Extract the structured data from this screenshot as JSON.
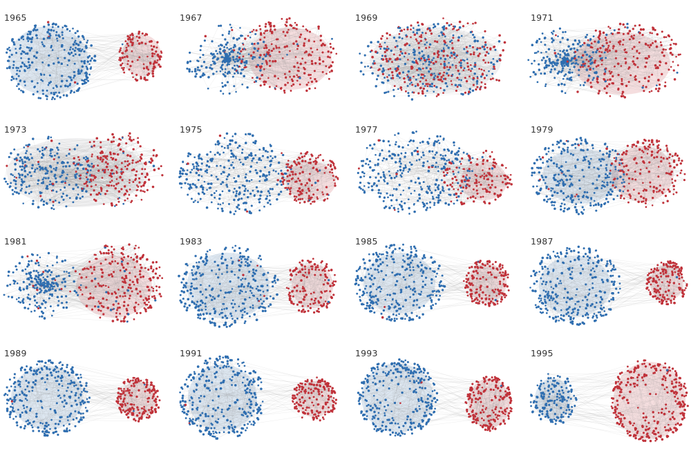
{
  "colors": {
    "party_a": "#2f6eb0",
    "party_b": "#c0323a",
    "edge": "#8a8a8a"
  },
  "panels": [
    {
      "year": "1965",
      "blue_nodes": 300,
      "red_nodes": 120,
      "separation": "high",
      "blue_cluster": "large-dense-left",
      "red_cluster": "small-dense-right"
    },
    {
      "year": "1967",
      "blue_nodes": 260,
      "red_nodes": 220,
      "separation": "low",
      "blue_cluster": "sparse-left",
      "red_cluster": "dense-right"
    },
    {
      "year": "1969",
      "blue_nodes": 260,
      "red_nodes": 260,
      "separation": "low",
      "blue_cluster": "mixed",
      "red_cluster": "mixed"
    },
    {
      "year": "1971",
      "blue_nodes": 240,
      "red_nodes": 240,
      "separation": "low",
      "blue_cluster": "sparse-left",
      "red_cluster": "right"
    },
    {
      "year": "1973",
      "blue_nodes": 260,
      "red_nodes": 240,
      "separation": "low",
      "blue_cluster": "left",
      "red_cluster": "right"
    },
    {
      "year": "1975",
      "blue_nodes": 320,
      "red_nodes": 150,
      "separation": "medium",
      "blue_cluster": "large-left",
      "red_cluster": "dense-right"
    },
    {
      "year": "1977",
      "blue_nodes": 320,
      "red_nodes": 150,
      "separation": "medium",
      "blue_cluster": "large-left",
      "red_cluster": "right"
    },
    {
      "year": "1979",
      "blue_nodes": 300,
      "red_nodes": 170,
      "separation": "medium",
      "blue_cluster": "left",
      "red_cluster": "dense-right"
    },
    {
      "year": "1981",
      "blue_nodes": 240,
      "red_nodes": 260,
      "separation": "low",
      "blue_cluster": "sparse-left",
      "red_cluster": "right"
    },
    {
      "year": "1983",
      "blue_nodes": 320,
      "red_nodes": 150,
      "separation": "medium",
      "blue_cluster": "large-left",
      "red_cluster": "dense-right"
    },
    {
      "year": "1985",
      "blue_nodes": 300,
      "red_nodes": 160,
      "separation": "high",
      "blue_cluster": "large-left",
      "red_cluster": "circle-right"
    },
    {
      "year": "1987",
      "blue_nodes": 300,
      "red_nodes": 160,
      "separation": "high",
      "blue_cluster": "large-left",
      "red_cluster": "circle-right"
    },
    {
      "year": "1989",
      "blue_nodes": 300,
      "red_nodes": 180,
      "separation": "high",
      "blue_cluster": "large-left",
      "red_cluster": "circle-right"
    },
    {
      "year": "1991",
      "blue_nodes": 300,
      "red_nodes": 170,
      "separation": "high",
      "blue_cluster": "large-left",
      "red_cluster": "circle-right"
    },
    {
      "year": "1993",
      "blue_nodes": 300,
      "red_nodes": 200,
      "separation": "very-high",
      "blue_cluster": "dense-circle-left",
      "red_cluster": "dense-circle-right"
    },
    {
      "year": "1995",
      "blue_nodes": 160,
      "red_nodes": 300,
      "separation": "very-high",
      "blue_cluster": "small-circle-left",
      "red_cluster": "large-dense-circle-right"
    }
  ]
}
